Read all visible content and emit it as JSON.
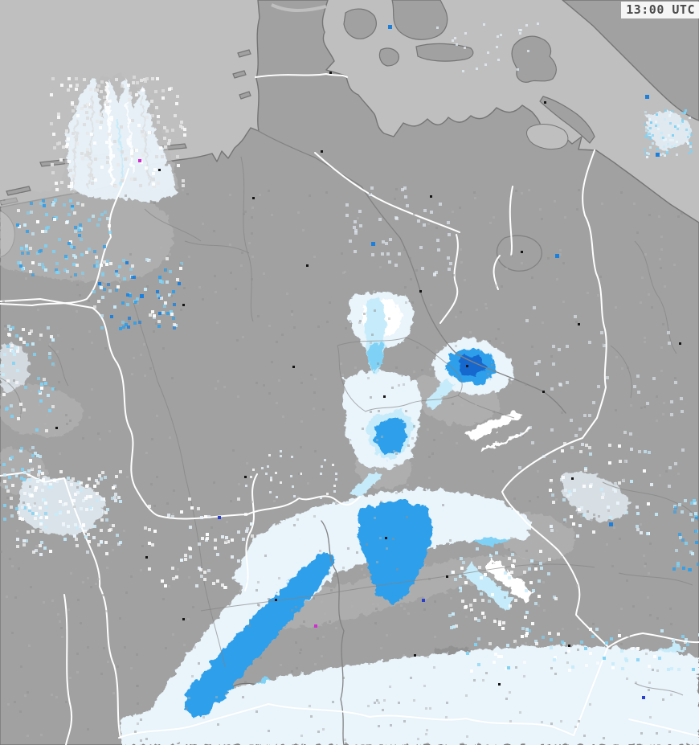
{
  "header": {
    "timestamp": "13:00 UTC"
  },
  "map": {
    "kind": "precipitation-radar",
    "region": "Germany and neighbouring countries",
    "colors": {
      "sea": "#bfbfbf",
      "land": "#a1a1a1",
      "clutter": "#bababa",
      "coastline": "#757575",
      "border_state": "#ffffff",
      "border_district": "#828282",
      "city_dot": "#141414",
      "timestamp_bg": "#f5f5f5",
      "timestamp_text": "#4a4a4a",
      "precip_levels": [
        "#e9f4fb",
        "#ffffff",
        "#c6ebfa",
        "#7fd2f5",
        "#2f9fea",
        "#1b7fdd",
        "#1668cf",
        "#2a3fd0",
        "#d02cd0"
      ]
    }
  }
}
